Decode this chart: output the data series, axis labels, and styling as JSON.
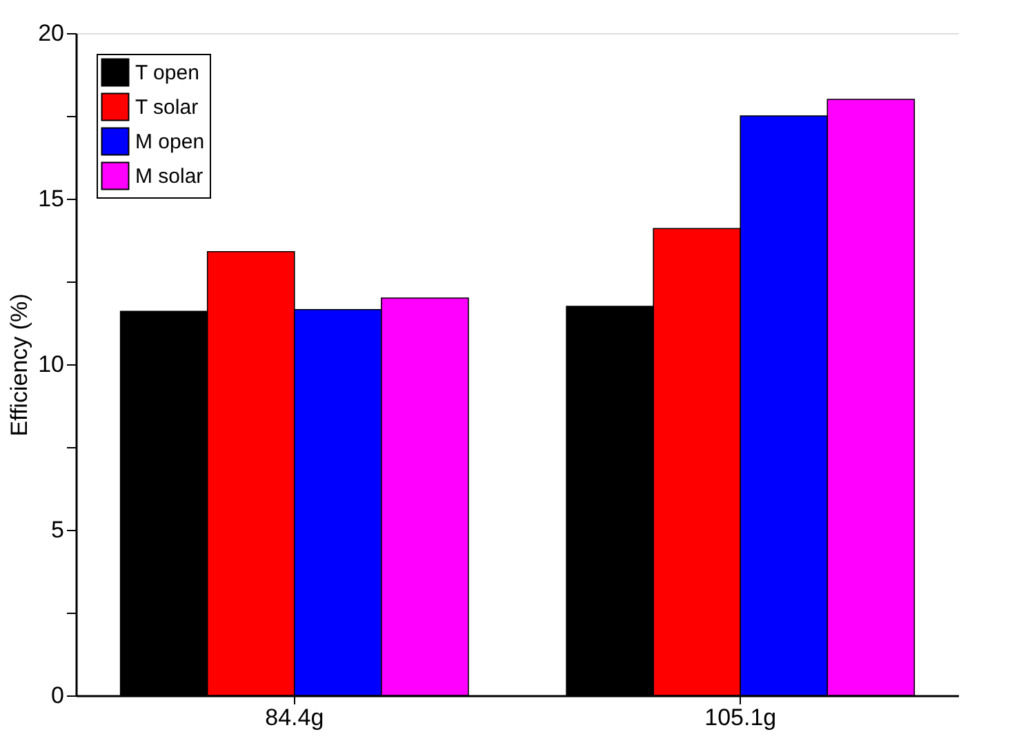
{
  "chart_data": {
    "type": "bar",
    "ylabel": "Efficiency (%)",
    "categories": [
      "84.4g",
      "105.1g"
    ],
    "series": [
      {
        "name": "T open",
        "color": "#000000",
        "values": [
          11.6,
          11.75
        ]
      },
      {
        "name": "T solar",
        "color": "#ff0000",
        "values": [
          13.4,
          14.1
        ]
      },
      {
        "name": "M open",
        "color": "#0000ff",
        "values": [
          11.65,
          17.5
        ]
      },
      {
        "name": "M solar",
        "color": "#ff00ff",
        "values": [
          12.0,
          18.0
        ]
      }
    ],
    "ylim": [
      0,
      20
    ],
    "yticks": [
      0,
      {
        "value": 2.5,
        "label": null
      },
      5,
      {
        "value": 7.5,
        "label": null
      },
      10,
      {
        "value": 12.5,
        "label": null
      },
      15,
      {
        "value": 17.5,
        "label": null
      },
      20
    ],
    "grid": false,
    "legend": "top left"
  }
}
